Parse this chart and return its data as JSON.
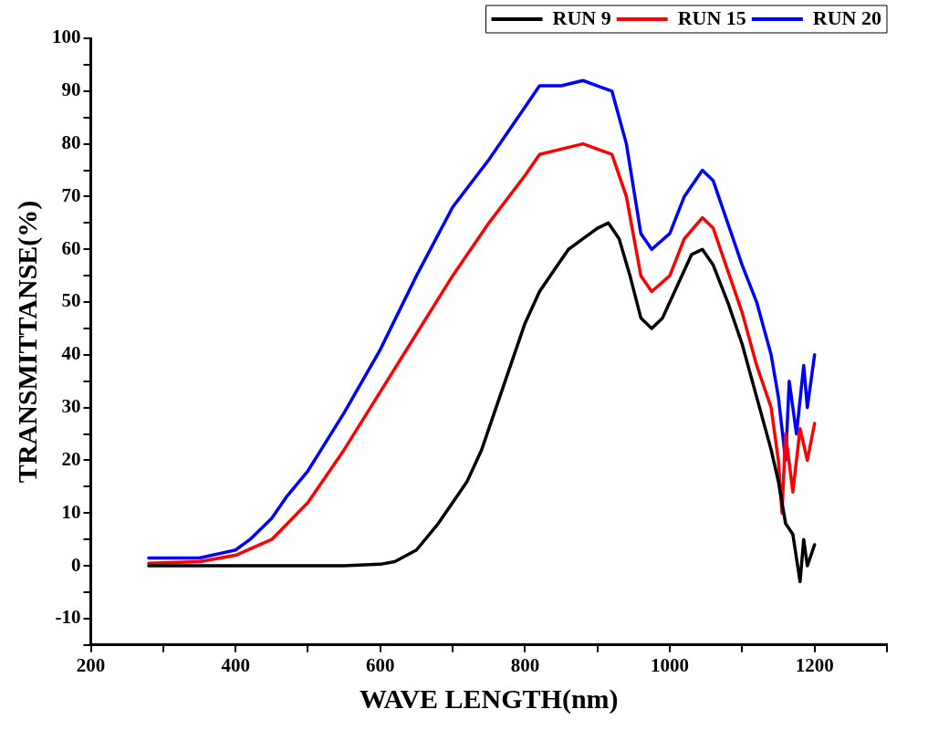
{
  "chart_data": {
    "type": "line",
    "xlabel": "WAVE LENGTH(nm)",
    "ylabel": "TRANSMITTANSE(%)",
    "xlim": [
      200,
      1300
    ],
    "ylim": [
      -15,
      100
    ],
    "xticks": [
      200,
      {
        "value": 300,
        "label": null
      },
      400,
      {
        "value": 500,
        "label": null
      },
      600,
      {
        "value": 700,
        "label": null
      },
      800,
      {
        "value": 900,
        "label": null
      },
      1000,
      {
        "value": 1100,
        "label": null
      },
      1200,
      {
        "value": 1300,
        "label": null
      }
    ],
    "yticks": [
      {
        "value": -15,
        "label": null
      },
      -10,
      {
        "value": -5,
        "label": null
      },
      0,
      {
        "value": 5,
        "label": null
      },
      10,
      {
        "value": 15,
        "label": null
      },
      20,
      {
        "value": 25,
        "label": null
      },
      30,
      {
        "value": 35,
        "label": null
      },
      40,
      {
        "value": 45,
        "label": null
      },
      50,
      {
        "value": 55,
        "label": null
      },
      60,
      {
        "value": 65,
        "label": null
      },
      70,
      {
        "value": 75,
        "label": null
      },
      80,
      {
        "value": 85,
        "label": null
      },
      90,
      {
        "value": 95,
        "label": null
      },
      100
    ],
    "grid": false,
    "legend": "top right",
    "marker": "none",
    "line_style": "solid",
    "series": [
      {
        "name": "RUN 9",
        "color": "#000000",
        "x": [
          280,
          350,
          450,
          550,
          600,
          620,
          650,
          680,
          700,
          720,
          740,
          760,
          780,
          800,
          820,
          840,
          860,
          880,
          900,
          915,
          930,
          945,
          960,
          975,
          990,
          1010,
          1030,
          1045,
          1060,
          1080,
          1100,
          1120,
          1140,
          1150,
          1160,
          1170,
          1180,
          1185,
          1190,
          1200
        ],
        "values": [
          0,
          0,
          0,
          0,
          0.3,
          0.8,
          3,
          8,
          12,
          16,
          22,
          30,
          38,
          46,
          52,
          56,
          60,
          62,
          64,
          65,
          62,
          55,
          47,
          45,
          47,
          53,
          59,
          60,
          57,
          50,
          42,
          32,
          22,
          16,
          8,
          6,
          -3,
          5,
          0,
          4
        ]
      },
      {
        "name": "RUN 15",
        "color": "#ff0000",
        "x": [
          280,
          350,
          400,
          450,
          500,
          550,
          600,
          650,
          700,
          750,
          800,
          820,
          850,
          880,
          900,
          920,
          940,
          960,
          975,
          1000,
          1020,
          1045,
          1060,
          1080,
          1100,
          1120,
          1140,
          1150,
          1155,
          1160,
          1170,
          1180,
          1190,
          1200
        ],
        "values": [
          0.5,
          0.8,
          2,
          5,
          12,
          22,
          33,
          44,
          55,
          65,
          74,
          78,
          79,
          80,
          79,
          78,
          70,
          55,
          52,
          55,
          62,
          66,
          64,
          56,
          48,
          38,
          30,
          20,
          10,
          25,
          14,
          26,
          20,
          27
        ]
      },
      {
        "name": "RUN 20",
        "color": "#0000ff",
        "x": [
          280,
          350,
          400,
          420,
          450,
          470,
          500,
          550,
          600,
          650,
          700,
          750,
          800,
          820,
          850,
          880,
          900,
          920,
          940,
          960,
          975,
          1000,
          1020,
          1045,
          1060,
          1080,
          1100,
          1120,
          1140,
          1150,
          1160,
          1165,
          1175,
          1185,
          1190,
          1200
        ],
        "values": [
          1.5,
          1.5,
          3,
          5,
          9,
          13,
          18,
          29,
          41,
          55,
          68,
          77,
          87,
          91,
          91,
          92,
          91,
          90,
          80,
          63,
          60,
          63,
          70,
          75,
          73,
          65,
          57,
          50,
          40,
          32,
          20,
          35,
          25,
          38,
          30,
          40
        ]
      }
    ]
  }
}
